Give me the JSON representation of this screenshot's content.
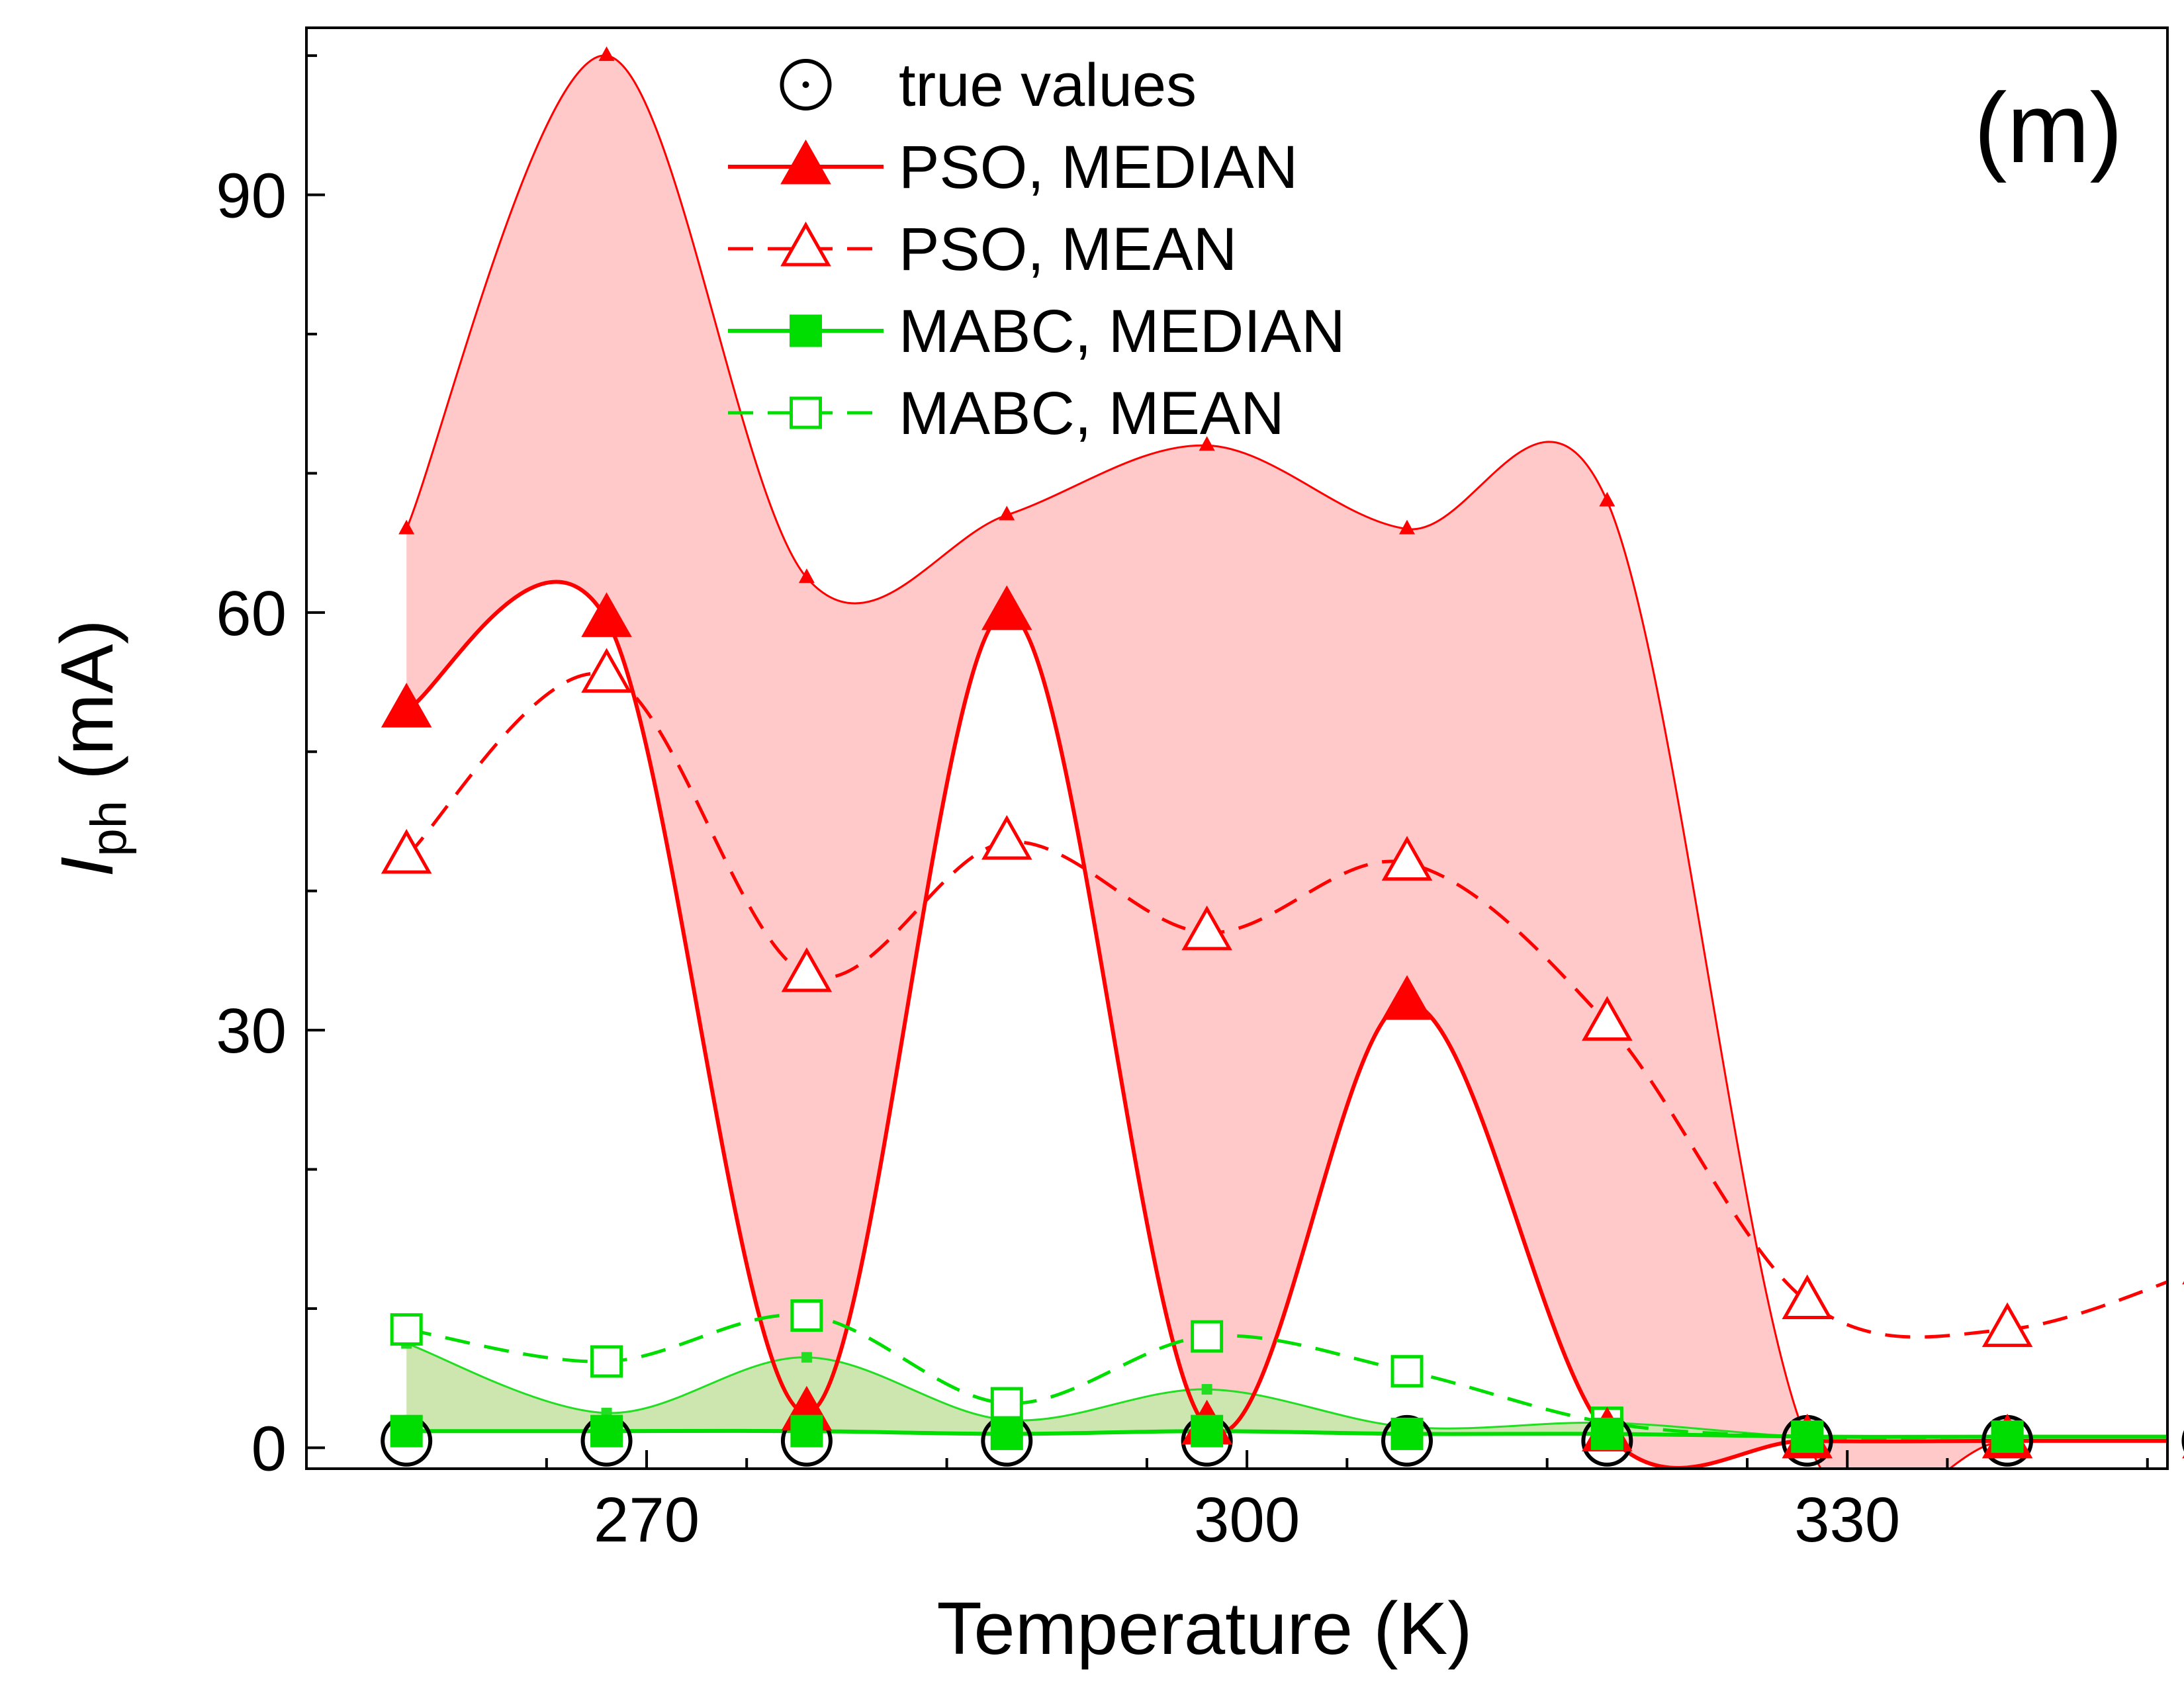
{
  "chart_data": {
    "type": "line",
    "panel_label": "(m)",
    "xlabel": "Temperature (K)",
    "ylabel": {
      "main": "I",
      "sub": "ph",
      "unit": " (mA)"
    },
    "xlim": [
      253,
      346
    ],
    "ylim": [
      -1.5,
      102
    ],
    "xticks": [
      270,
      300,
      330
    ],
    "yticks": [
      0,
      30,
      60,
      90
    ],
    "x": [
      258,
      268,
      278,
      288,
      298,
      308,
      318,
      328,
      338,
      348
    ],
    "series": [
      {
        "name": "true values",
        "style": "true",
        "color": "#000000",
        "values": [
          0.5,
          0.5,
          0.5,
          0.5,
          0.5,
          0.5,
          0.5,
          0.5,
          0.5,
          0.5
        ]
      },
      {
        "name": "PSO, MEDIAN",
        "style": "median",
        "marker": "triangle-filled",
        "color": "#ff0000",
        "values": [
          53,
          59.5,
          2.5,
          60,
          1.5,
          32,
          1,
          0.5,
          0.5,
          0.5
        ]
      },
      {
        "name": "PSO, MEAN",
        "style": "mean",
        "marker": "triangle-open",
        "color": "#ff0000",
        "values": [
          42.5,
          55.5,
          34,
          43.5,
          37,
          42,
          30.5,
          10.5,
          8.5,
          13
        ]
      },
      {
        "name": "MABC, MEDIAN",
        "style": "median",
        "marker": "square-filled",
        "color": "#00dd00",
        "values": [
          1.2,
          1.2,
          1.2,
          1.0,
          1.2,
          1.0,
          1.0,
          0.8,
          0.8,
          0.8
        ]
      },
      {
        "name": "MABC, MEAN",
        "style": "mean",
        "marker": "square-open",
        "color": "#00dd00",
        "values": [
          8.5,
          6.2,
          9.5,
          3.2,
          8.0,
          5.5,
          1.8,
          0.8,
          0.8,
          0.8
        ]
      }
    ],
    "bands": [
      {
        "of": "PSO",
        "fill": "#ffc9c9",
        "line": "#ff0000",
        "upper": [
          66,
          100,
          62.5,
          67,
          72,
          66,
          68,
          0.5,
          0.5,
          0.5
        ]
      },
      {
        "of": "MABC",
        "fill": "#cde6b0",
        "line": "#22dd22",
        "upper": [
          7.5,
          2.5,
          6.5,
          2.0,
          4.2,
          1.5,
          1.8,
          0.8,
          0.8,
          0.8
        ]
      }
    ],
    "legend": "top-center",
    "grid": false
  }
}
